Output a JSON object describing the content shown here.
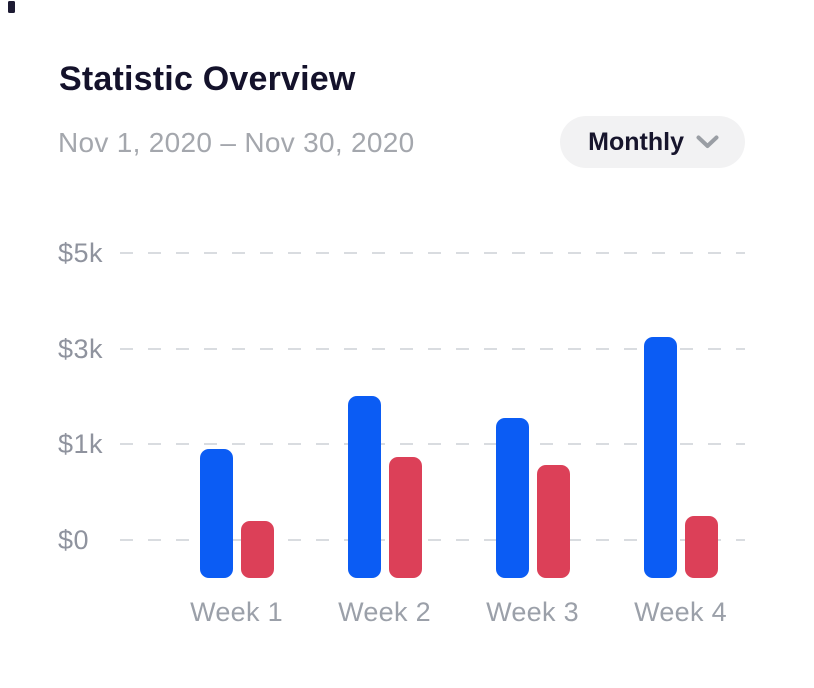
{
  "page": {
    "background": "#ffffff"
  },
  "corner_fragment": {
    "color": "#1d1b33"
  },
  "header": {
    "title": "Statistic Overview",
    "date_range": "Nov 1, 2020 – Nov 30, 2020",
    "period_selector": {
      "label": "Monthly",
      "icon": "chevron-down"
    }
  },
  "chart_data": {
    "type": "bar",
    "title": "Statistic Overview",
    "subtitle": "Nov 1, 2020 – Nov 30, 2020",
    "categories": [
      "Week 1",
      "Week 2",
      "Week 3",
      "Week 4"
    ],
    "series": [
      {
        "name": "blue",
        "color": "#0b5cf4",
        "values": [
          950,
          2000,
          1550,
          3250
        ]
      },
      {
        "name": "red",
        "color": "#dc4058",
        "values": [
          200,
          870,
          780,
          250
        ]
      }
    ],
    "yticks": {
      "labels": [
        "$0",
        "$1k",
        "$3k",
        "$5k"
      ],
      "values": [
        0,
        1000,
        3000,
        5000
      ]
    },
    "xlabel": "",
    "ylabel": "",
    "ylim": [
      0,
      5000
    ],
    "grid": "horizontal-dashed",
    "legend": "none",
    "colors": {
      "gridline": "#d9dce0",
      "ytick_text": "#8f939e",
      "xtick_text": "#9ba0a9"
    }
  }
}
